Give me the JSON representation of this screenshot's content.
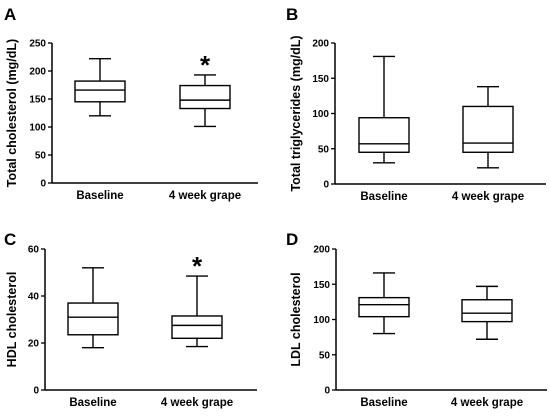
{
  "chart_data": [
    {
      "panel": "A",
      "type": "box",
      "ylabel": "Total cholesterol (mg/dL)",
      "ylim": [
        0,
        250
      ],
      "yticks": [
        0,
        50,
        100,
        150,
        200,
        250
      ],
      "categories": [
        "Baseline",
        "4 week grape"
      ],
      "boxes": [
        {
          "min": 120,
          "q1": 145,
          "median": 166,
          "q3": 182,
          "max": 222,
          "mark": ""
        },
        {
          "min": 101,
          "q1": 133,
          "median": 148,
          "q3": 174,
          "max": 193,
          "mark": "*"
        }
      ]
    },
    {
      "panel": "B",
      "type": "box",
      "ylabel": "Total triglycerides (mg/dL)",
      "ylim": [
        0,
        200
      ],
      "yticks": [
        0,
        50,
        100,
        150,
        200
      ],
      "categories": [
        "Baseline",
        "4 week grape"
      ],
      "boxes": [
        {
          "min": 30,
          "q1": 45,
          "median": 57,
          "q3": 94,
          "max": 181,
          "mark": ""
        },
        {
          "min": 23,
          "q1": 45,
          "median": 58,
          "q3": 110,
          "max": 138,
          "mark": ""
        }
      ]
    },
    {
      "panel": "C",
      "type": "box",
      "ylabel": "HDL cholesterol",
      "ylim": [
        0,
        60
      ],
      "yticks": [
        0,
        20,
        40,
        60
      ],
      "categories": [
        "Baseline",
        "4 week grape"
      ],
      "boxes": [
        {
          "min": 18,
          "q1": 23.5,
          "median": 31,
          "q3": 37,
          "max": 52,
          "mark": ""
        },
        {
          "min": 18.5,
          "q1": 22,
          "median": 27.5,
          "q3": 31.5,
          "max": 48.5,
          "mark": "*"
        }
      ]
    },
    {
      "panel": "D",
      "type": "box",
      "ylabel": "LDL cholesterol",
      "ylim": [
        0,
        200
      ],
      "yticks": [
        0,
        50,
        100,
        150,
        200
      ],
      "categories": [
        "Baseline",
        "4 week grape"
      ],
      "boxes": [
        {
          "min": 80,
          "q1": 104,
          "median": 121,
          "q3": 131,
          "max": 166,
          "mark": ""
        },
        {
          "min": 72,
          "q1": 97,
          "median": 109,
          "q3": 128,
          "max": 147,
          "mark": ""
        }
      ]
    }
  ]
}
